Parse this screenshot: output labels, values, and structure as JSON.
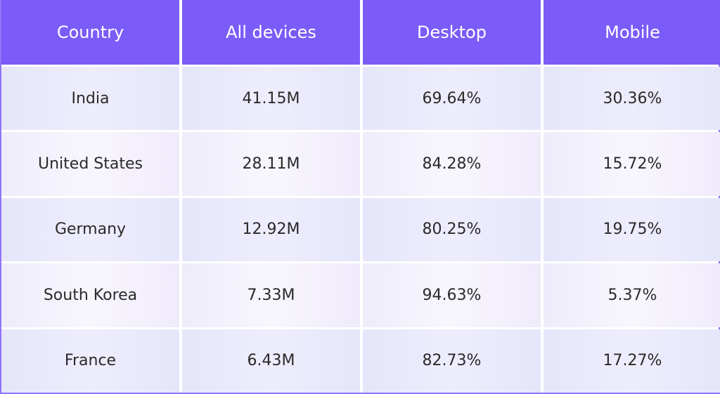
{
  "table": {
    "header": [
      "Country",
      "All devices",
      "Desktop",
      "Mobile"
    ],
    "rows": [
      [
        "India",
        "41.15M",
        "69.64%",
        "30.36%"
      ],
      [
        "United States",
        "28.11M",
        "84.28%",
        "15.72%"
      ],
      [
        "Germany",
        "12.92M",
        "80.25%",
        "19.75%"
      ],
      [
        "South Korea",
        "7.33M",
        "94.63%",
        "5.37%"
      ],
      [
        "France",
        "6.43M",
        "82.73%",
        "17.27%"
      ]
    ]
  }
}
